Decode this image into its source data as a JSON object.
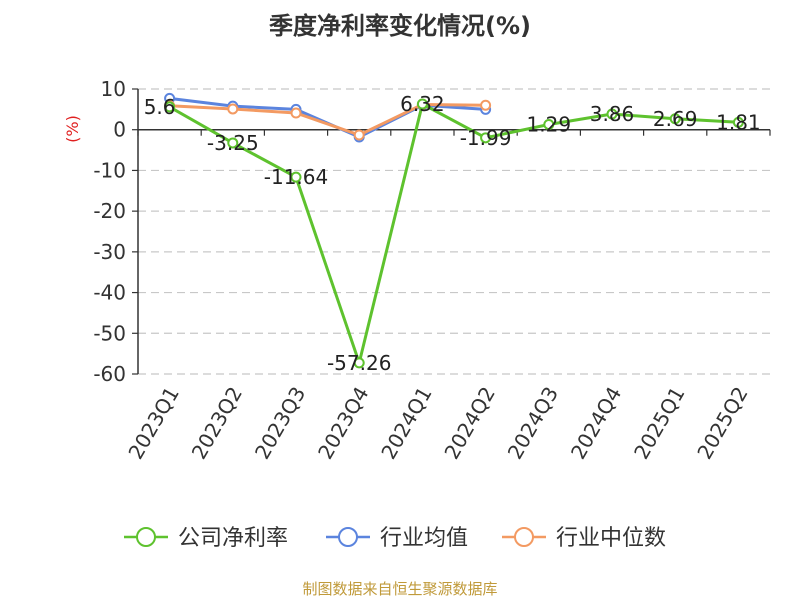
{
  "source_text": "制图数据来自恒生聚源数据库",
  "colors": {
    "company": "#5ec22e",
    "industry_avg": "#5b84de",
    "industry_median": "#f39a62",
    "ylabel": "#e02020",
    "source": "#c09a3a",
    "grid": "#c8c8c8",
    "axis": "#333333"
  },
  "chart_data": {
    "type": "line",
    "title": "季度净利率变化情况(%)",
    "xlabel": "",
    "ylabel": "(%)",
    "ylim": [
      -60,
      10
    ],
    "yticks": [
      10,
      0,
      -10,
      -20,
      -30,
      -40,
      -50,
      -60
    ],
    "grid": true,
    "legend_position": "bottom",
    "categories": [
      "2023Q1",
      "2023Q2",
      "2023Q3",
      "2023Q4",
      "2024Q1",
      "2024Q2",
      "2024Q3",
      "2024Q4",
      "2025Q1",
      "2025Q2"
    ],
    "series": [
      {
        "name": "公司净利率",
        "color": "#5ec22e",
        "values": [
          5.6,
          -3.25,
          -11.64,
          -57.26,
          6.32,
          -1.99,
          1.29,
          3.86,
          2.69,
          1.81
        ],
        "labels": [
          "5.6",
          "-3.25",
          "-11.64",
          "-57.26",
          "6.32",
          "-1.99",
          "1.29",
          "3.86",
          "2.69",
          "1.81"
        ]
      },
      {
        "name": "行业均值",
        "color": "#5b84de",
        "values": [
          7.7,
          5.8,
          5.0,
          -1.8,
          6.0,
          5.0,
          null,
          null,
          null,
          null
        ]
      },
      {
        "name": "行业中位数",
        "color": "#f39a62",
        "values": [
          5.9,
          5.1,
          4.1,
          -1.3,
          6.2,
          6.0,
          null,
          null,
          null,
          null
        ]
      }
    ]
  }
}
